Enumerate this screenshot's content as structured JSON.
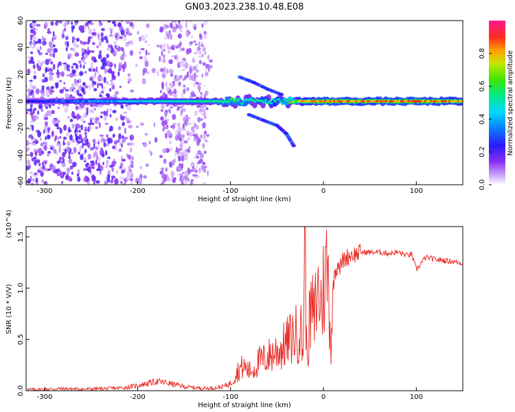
{
  "figure": {
    "title": "GN03.2023.238.10.48.E08"
  },
  "chart_data": [
    {
      "type": "heatmap",
      "title": "GN03.2023.238.10.48.E08",
      "xlabel": "Height of straight line (km)",
      "ylabel": "Frequency (Hz)",
      "xlim": [
        -320,
        150
      ],
      "ylim": [
        -62,
        60
      ],
      "x_ticks": [
        -300,
        -200,
        -100,
        0,
        100
      ],
      "y_ticks": [
        60,
        40,
        20,
        0,
        -20,
        -40,
        -60
      ],
      "colorbar": {
        "label": "Normalized spectral amplitude",
        "range": [
          0,
          1
        ],
        "ticks": [
          0.0,
          0.2,
          0.4,
          0.6,
          0.8
        ],
        "tick_labels": [
          "0.0",
          "0.2",
          "0.4",
          "0.6",
          "0.8"
        ],
        "colormap": [
          "#ffffff",
          "#c9a3f5",
          "#7a1cf0",
          "#1414ff",
          "#00c8ff",
          "#00e08a",
          "#32e000",
          "#c8e600",
          "#ff9a00",
          "#ff2020",
          "#ff1a90"
        ]
      },
      "features": [
        {
          "name": "broadband noise",
          "x_range": [
            -320,
            -120
          ],
          "y_range": [
            -62,
            60
          ],
          "amplitude": 0.25
        },
        {
          "name": "main carrier",
          "x_range": [
            -320,
            150
          ],
          "y_center": 0,
          "amplitude_trend": [
            [
              -300,
              0.3
            ],
            [
              -200,
              0.45
            ],
            [
              -100,
              0.55
            ],
            [
              -50,
              0.45
            ],
            [
              -20,
              0.8
            ],
            [
              0,
              0.9
            ],
            [
              50,
              0.85
            ],
            [
              100,
              0.9
            ],
            [
              150,
              0.8
            ]
          ]
        },
        {
          "name": "upper branch",
          "points": [
            [
              -90,
              18
            ],
            [
              -75,
              14
            ],
            [
              -60,
              9
            ],
            [
              -45,
              5
            ]
          ]
        },
        {
          "name": "lower branch",
          "points": [
            [
              -80,
              -10
            ],
            [
              -65,
              -14
            ],
            [
              -50,
              -18
            ],
            [
              -40,
              -24
            ],
            [
              -32,
              -33
            ]
          ]
        }
      ],
      "grid": false
    },
    {
      "type": "line",
      "xlabel": "Height of straight line (km)",
      "ylabel": "SNR (10 * V/V)",
      "y_multiplier": "(x10^4)",
      "xlim": [
        -320,
        150
      ],
      "ylim": [
        0,
        16000
      ],
      "x_ticks": [
        -300,
        -200,
        -100,
        0,
        100
      ],
      "y_ticks": [
        0,
        5000,
        10000,
        15000
      ],
      "y_tick_labels": [
        "0.0",
        "0.5",
        "1.0",
        "1.5"
      ],
      "color": "#e8302a",
      "grid": false,
      "series": [
        {
          "x": [
            -320,
            -300,
            -280,
            -260,
            -240,
            -220,
            -210,
            -200,
            -190,
            -180,
            -170,
            -160,
            -150,
            -140,
            -130,
            -120,
            -110,
            -100,
            -95,
            -90,
            -85,
            -80,
            -75,
            -70,
            -65,
            -60,
            -55,
            -50,
            -45,
            -40,
            -35,
            -30,
            -28,
            -25,
            -22,
            -20,
            -18,
            -15,
            -12,
            -10,
            -8,
            -5,
            -2,
            0,
            2,
            4,
            6,
            8,
            10,
            12,
            14,
            16,
            18,
            20,
            25,
            30,
            35,
            40,
            50,
            60,
            70,
            80,
            90,
            95,
            100,
            110,
            120,
            130,
            140,
            150
          ],
          "y": [
            100,
            150,
            200,
            150,
            200,
            250,
            350,
            500,
            700,
            900,
            800,
            600,
            400,
            300,
            250,
            250,
            350,
            700,
            1500,
            2200,
            2300,
            1900,
            2100,
            2800,
            3000,
            3300,
            3600,
            3900,
            4100,
            4600,
            5100,
            5600,
            5200,
            6500,
            3500,
            15800,
            3000,
            6600,
            8000,
            6500,
            8800,
            9600,
            8400,
            10000,
            11000,
            12200,
            9500,
            4000,
            9500,
            11500,
            11900,
            12600,
            12000,
            12600,
            13000,
            13300,
            13300,
            13500,
            13500,
            13500,
            13400,
            13500,
            13200,
            13300,
            11800,
            13000,
            12800,
            12700,
            12600,
            12400
          ]
        }
      ]
    }
  ]
}
